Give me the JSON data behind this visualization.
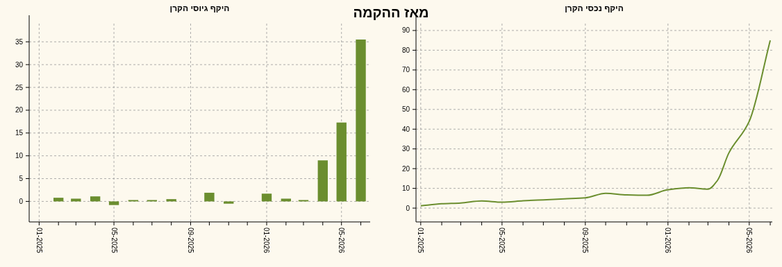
{
  "chart_data": [
    {
      "type": "bar",
      "title": "היקף גיוסי הקרן",
      "annotations": [
        "מאז ההקמה"
      ],
      "color": "#6b8e2f",
      "x": [
        "2025-02",
        "2025-03",
        "2025-04",
        "2025-05",
        "2025-06",
        "2025-07",
        "2025-08",
        "2025-09",
        "2025-10",
        "2025-11",
        "2025-12",
        "2026-01",
        "2026-02",
        "2026-03",
        "2026-04",
        "2026-05",
        "2026-06"
      ],
      "values": [
        0.8,
        0.6,
        1.1,
        -0.8,
        0.3,
        0.3,
        0.5,
        0,
        1.9,
        -0.5,
        0,
        1.7,
        0.6,
        0.3,
        9,
        17.3,
        35.5
      ],
      "xlim": [
        "2024-12-16",
        "2026-06-16"
      ],
      "xticks": [
        {
          "value": "2025-01",
          "label": "01-2025"
        },
        {
          "value": "2025-02",
          "label": null
        },
        {
          "value": "2025-03",
          "label": null
        },
        {
          "value": "2025-04",
          "label": null
        },
        {
          "value": "2025-05",
          "label": "05-2025"
        },
        {
          "value": "2025-06",
          "label": null
        },
        {
          "value": "2025-07",
          "label": null
        },
        {
          "value": "2025-08",
          "label": null
        },
        {
          "value": "2025-09",
          "label": "09-2025"
        },
        {
          "value": "2025-10",
          "label": null
        },
        {
          "value": "2025-11",
          "label": null
        },
        {
          "value": "2025-12",
          "label": null
        },
        {
          "value": "2026-01",
          "label": "01-2026"
        },
        {
          "value": "2026-02",
          "label": null
        },
        {
          "value": "2026-03",
          "label": null
        },
        {
          "value": "2026-04",
          "label": null
        },
        {
          "value": "2026-05",
          "label": "05-2026"
        },
        {
          "value": "2026-06",
          "label": null
        }
      ],
      "ylim": [
        -4.5,
        39
      ],
      "yticks": [
        0,
        5,
        10,
        15,
        20,
        25,
        30,
        35
      ],
      "grid": true
    },
    {
      "type": "line",
      "title": "היקף נכסי הקרן",
      "color": "#6b8e2f",
      "x": [
        "2025-01",
        "2025-02",
        "2025-03",
        "2025-04",
        "2025-05",
        "2025-06",
        "2025-07",
        "2025-08",
        "2025-09",
        "2025-10",
        "2025-11",
        "2025-12",
        "2026-01",
        "2026-02",
        "2026-03",
        "2026-03-15",
        "2026-04",
        "2026-05",
        "2026-06"
      ],
      "values": [
        1.2,
        2.2,
        2.6,
        3.6,
        3.0,
        3.7,
        4.2,
        4.7,
        5.2,
        7.5,
        6.7,
        6.5,
        9.3,
        10.3,
        9.6,
        14,
        28,
        44,
        85
      ],
      "xlim": [
        "2024-12-25",
        "2026-06-04"
      ],
      "xticks": [
        {
          "value": "2025-01",
          "label": "01-2025"
        },
        {
          "value": "2025-02",
          "label": null
        },
        {
          "value": "2025-03",
          "label": null
        },
        {
          "value": "2025-04",
          "label": null
        },
        {
          "value": "2025-05",
          "label": "05-2025"
        },
        {
          "value": "2025-06",
          "label": null
        },
        {
          "value": "2025-07",
          "label": null
        },
        {
          "value": "2025-08",
          "label": null
        },
        {
          "value": "2025-09",
          "label": "09-2025"
        },
        {
          "value": "2025-10",
          "label": null
        },
        {
          "value": "2025-11",
          "label": null
        },
        {
          "value": "2025-12",
          "label": null
        },
        {
          "value": "2026-01",
          "label": "01-2026"
        },
        {
          "value": "2026-02",
          "label": null
        },
        {
          "value": "2026-03",
          "label": null
        },
        {
          "value": "2026-04",
          "label": null
        },
        {
          "value": "2026-05",
          "label": "05-2026"
        },
        {
          "value": "2026-06",
          "label": null
        }
      ],
      "ylim": [
        -7,
        93.5
      ],
      "yticks": [
        0,
        10,
        20,
        30,
        40,
        50,
        60,
        70,
        80,
        90
      ],
      "grid": true
    }
  ]
}
